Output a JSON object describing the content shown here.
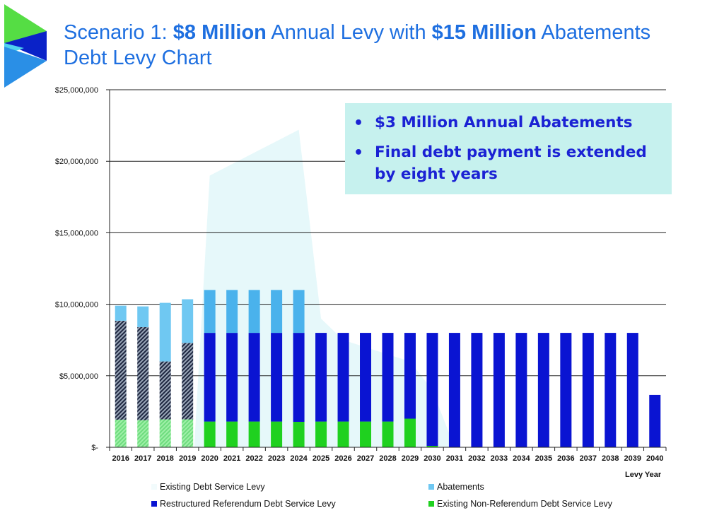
{
  "title": {
    "line1_a": "Scenario 1: ",
    "line1_b": "$8 Million",
    "line1_c": " Annual Levy with ",
    "line1_d": "$15 Million",
    "line1_e": " Abatements",
    "line2": "Debt Levy Chart"
  },
  "callout": {
    "bullet": "•",
    "item1": "$3 Million Annual Abatements",
    "item2_line1": "Final debt payment is extended",
    "item2_line2": "by eight years"
  },
  "colors": {
    "non_referendum": "#1fd11f",
    "restructured": "#0a14d2",
    "abatements": "#6fc8f2",
    "existing": "#2a3550",
    "background_area": "#e6f8fa",
    "title": "#1e6fe0"
  },
  "chart_data": {
    "type": "bar",
    "stacked": true,
    "title": "Debt Levy Chart",
    "xlabel": "Levy Year",
    "ylabel": "",
    "ylim": [
      0,
      25000000
    ],
    "yticks": [
      0,
      5000000,
      10000000,
      15000000,
      20000000,
      25000000
    ],
    "ytick_labels": [
      "$-",
      "$5,000,000",
      "$10,000,000",
      "$15,000,000",
      "$20,000,000",
      "$25,000,000"
    ],
    "grid": true,
    "legend_position": "bottom",
    "categories": [
      "2016",
      "2017",
      "2018",
      "2019",
      "2020",
      "2021",
      "2022",
      "2023",
      "2024",
      "2025",
      "2026",
      "2027",
      "2028",
      "2029",
      "2030",
      "2031",
      "2032",
      "2033",
      "2034",
      "2035",
      "2036",
      "2037",
      "2038",
      "2039",
      "2040"
    ],
    "series": [
      {
        "name": "Existing Non-Referendum Debt Service Levy",
        "key": "non_referendum",
        "values": [
          1930000,
          1900000,
          1950000,
          1950000,
          1800000,
          1800000,
          1800000,
          1800000,
          1780000,
          1800000,
          1800000,
          1800000,
          1800000,
          2000000,
          100000,
          0,
          0,
          0,
          0,
          0,
          0,
          0,
          0,
          0,
          0
        ]
      },
      {
        "name": "Existing Debt Service Levy",
        "key": "existing",
        "values": [
          6920000,
          6500000,
          4050000,
          5350000,
          0,
          0,
          0,
          0,
          0,
          0,
          0,
          0,
          0,
          0,
          0,
          0,
          0,
          0,
          0,
          0,
          0,
          0,
          0,
          0,
          0
        ]
      },
      {
        "name": "Restructured Referendum Debt Service Levy",
        "key": "restructured",
        "values": [
          0,
          0,
          0,
          0,
          6200000,
          6200000,
          6200000,
          6200000,
          6220000,
          6200000,
          6200000,
          6200000,
          6200000,
          6000000,
          7900000,
          8000000,
          8000000,
          8000000,
          8000000,
          8000000,
          8000000,
          8000000,
          8000000,
          8000000,
          3660000
        ]
      },
      {
        "name": "Abatements",
        "key": "abatements",
        "values": [
          1050000,
          1450000,
          4100000,
          3050000,
          3000000,
          3000000,
          3000000,
          3000000,
          3000000,
          0,
          0,
          0,
          0,
          0,
          0,
          0,
          0,
          0,
          0,
          0,
          0,
          0,
          0,
          0,
          0
        ]
      }
    ],
    "background_area": {
      "values": [
        0,
        0,
        0,
        0,
        19000000,
        19800000,
        20600000,
        21400000,
        22200000,
        9000000,
        7500000,
        7000000,
        6500000,
        6000000,
        4000000,
        0,
        0,
        0,
        0,
        0,
        0,
        0,
        0,
        0,
        0
      ]
    },
    "legend": [
      {
        "label": "Existing Debt Service Levy",
        "key": "background_area"
      },
      {
        "label": "Abatements",
        "key": "abatements"
      },
      {
        "label": "Restructured Referendum Debt Service Levy",
        "key": "restructured"
      },
      {
        "label": "Existing Non-Referendum Debt Service Levy",
        "key": "non_referendum"
      }
    ]
  }
}
